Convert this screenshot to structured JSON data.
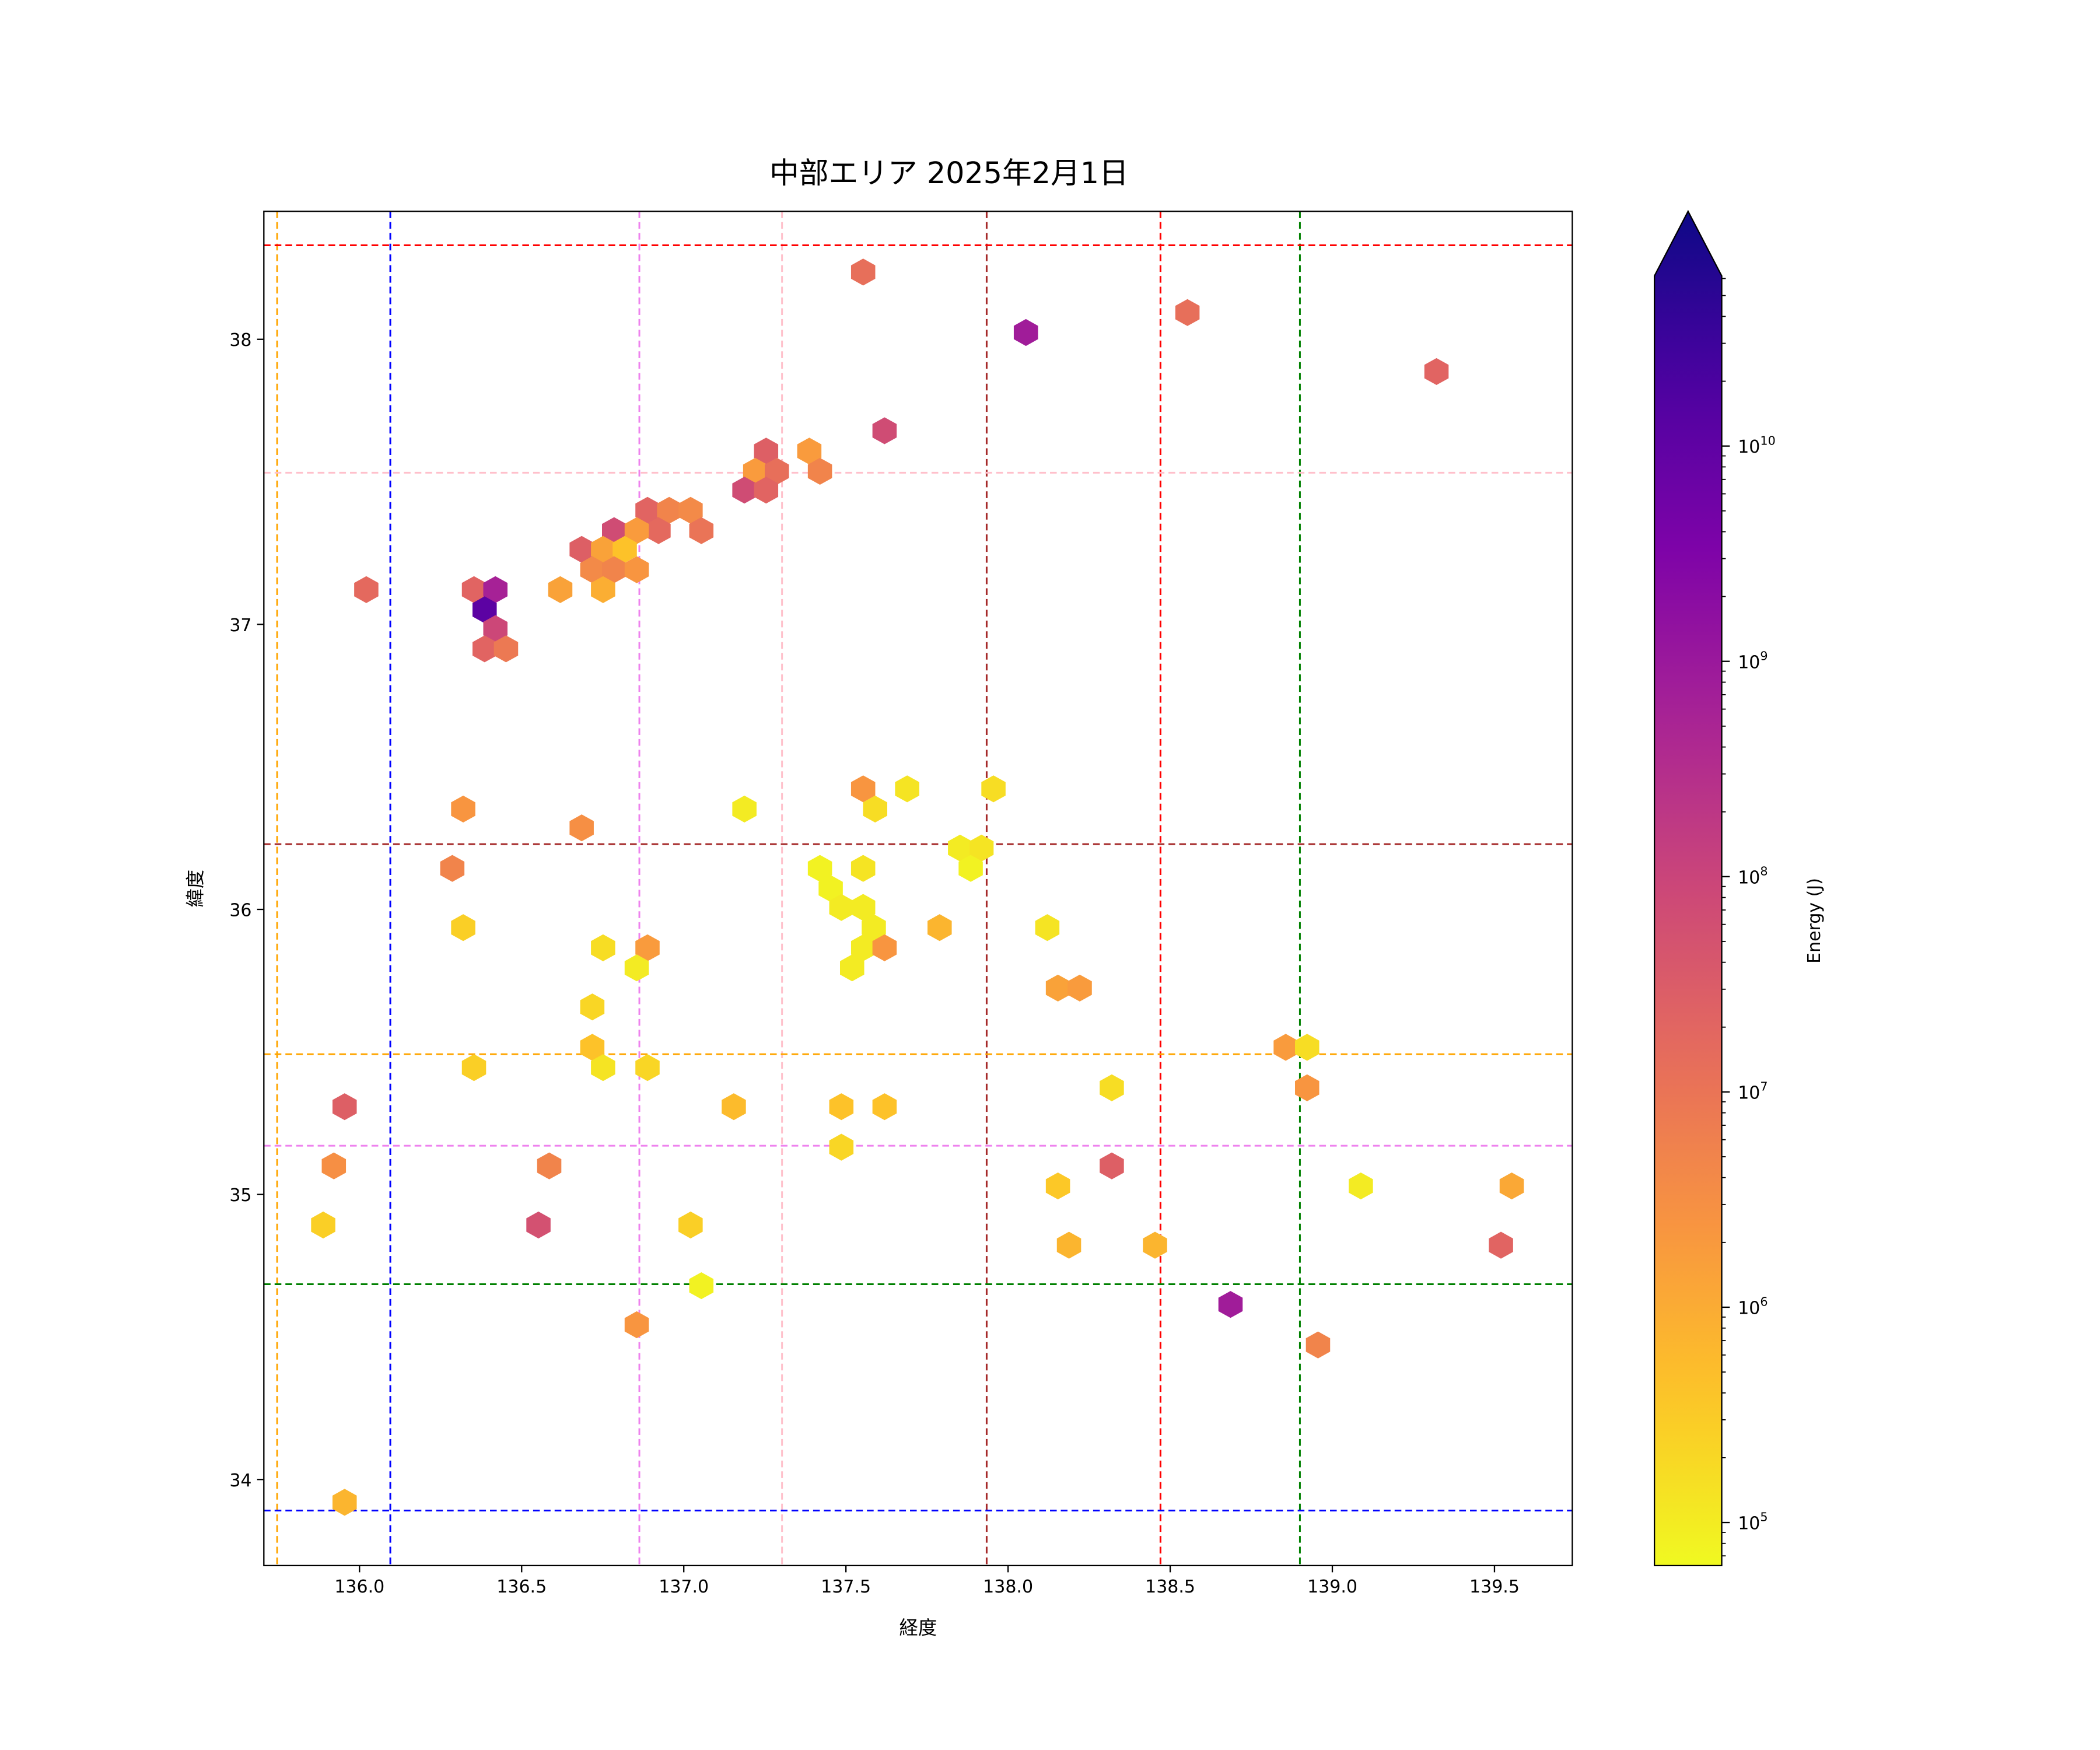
{
  "chart_data": {
    "type": "hexbin",
    "title": "中部エリア 2025年2月1日",
    "xlabel": "経度",
    "ylabel": "緯度",
    "xlim": [
      135.705,
      139.74
    ],
    "ylim": [
      33.698,
      38.449
    ],
    "xticks": [
      136.0,
      136.5,
      137.0,
      137.5,
      138.0,
      138.5,
      139.0,
      139.5
    ],
    "xtick_labels": [
      "136.0",
      "136.5",
      "137.0",
      "137.5",
      "138.0",
      "138.5",
      "139.0",
      "139.5"
    ],
    "yticks": [
      34,
      35,
      36,
      37,
      38
    ],
    "ytick_labels": [
      "34",
      "35",
      "36",
      "37",
      "38"
    ],
    "colorbar": {
      "label": "Energy (J)",
      "scale": "log",
      "range_log10": [
        4.8,
        10.79
      ],
      "extend": "max",
      "colormap": "plasma",
      "ticks_log10": [
        5,
        6,
        7,
        8,
        9,
        10
      ],
      "tick_base": "10",
      "tick_exponents": [
        "5",
        "6",
        "7",
        "8",
        "9",
        "10"
      ]
    },
    "reference_lines": {
      "vertical": [
        {
          "x": 135.746,
          "color": "#ffa500"
        },
        {
          "x": 136.095,
          "color": "#0000ff"
        },
        {
          "x": 136.863,
          "color": "#ee82ee"
        },
        {
          "x": 137.303,
          "color": "#ffc0cb"
        },
        {
          "x": 137.934,
          "color": "#a52a2a"
        },
        {
          "x": 138.47,
          "color": "#ff0000"
        },
        {
          "x": 138.9,
          "color": "#008000"
        }
      ],
      "horizontal": [
        {
          "y": 38.33,
          "color": "#ff0000"
        },
        {
          "y": 37.532,
          "color": "#ffc0cb"
        },
        {
          "y": 36.229,
          "color": "#a52a2a"
        },
        {
          "y": 35.492,
          "color": "#ffa500"
        },
        {
          "y": 35.171,
          "color": "#ee82ee"
        },
        {
          "y": 34.685,
          "color": "#008000"
        },
        {
          "y": 33.891,
          "color": "#0000ff"
        }
      ]
    },
    "bins": [
      [
        137.553,
        38.236,
        7.0
      ],
      [
        138.055,
        38.024,
        8.7
      ],
      [
        138.553,
        38.094,
        7.0
      ],
      [
        139.321,
        37.887,
        7.2
      ],
      [
        137.619,
        37.679,
        7.7
      ],
      [
        137.254,
        37.608,
        7.3
      ],
      [
        137.387,
        37.608,
        6.2
      ],
      [
        137.22,
        37.537,
        6.2
      ],
      [
        137.287,
        37.537,
        7.0
      ],
      [
        137.42,
        37.537,
        6.6
      ],
      [
        137.187,
        37.471,
        7.7
      ],
      [
        137.254,
        37.471,
        7.2
      ],
      [
        136.888,
        37.4,
        7.2
      ],
      [
        136.955,
        37.4,
        6.6
      ],
      [
        137.021,
        37.4,
        6.5
      ],
      [
        136.922,
        37.329,
        7.1
      ],
      [
        137.054,
        37.329,
        6.9
      ],
      [
        136.785,
        37.329,
        7.7
      ],
      [
        136.855,
        37.329,
        6.2
      ],
      [
        136.685,
        37.263,
        7.3
      ],
      [
        136.751,
        37.263,
        6.1
      ],
      [
        136.818,
        37.263,
        5.6
      ],
      [
        136.718,
        37.192,
        6.5
      ],
      [
        136.785,
        37.192,
        6.6
      ],
      [
        136.855,
        37.192,
        6.3
      ],
      [
        136.751,
        37.122,
        5.9
      ],
      [
        136.619,
        37.122,
        6.1
      ],
      [
        136.353,
        37.122,
        7.2
      ],
      [
        136.419,
        37.122,
        8.6
      ],
      [
        136.021,
        37.122,
        7.1
      ],
      [
        136.386,
        37.051,
        9.8
      ],
      [
        136.419,
        36.985,
        7.8
      ],
      [
        136.386,
        36.914,
        7.2
      ],
      [
        136.452,
        36.914,
        6.8
      ],
      [
        137.187,
        36.352,
        5.0
      ],
      [
        137.553,
        36.423,
        6.3
      ],
      [
        137.59,
        36.352,
        5.2
      ],
      [
        137.689,
        36.423,
        5.1
      ],
      [
        137.955,
        36.423,
        5.2
      ],
      [
        136.32,
        36.352,
        6.3
      ],
      [
        136.685,
        36.286,
        6.4
      ],
      [
        136.286,
        36.144,
        6.6
      ],
      [
        137.42,
        36.144,
        4.9
      ],
      [
        137.553,
        36.144,
        5.1
      ],
      [
        137.453,
        36.073,
        4.9
      ],
      [
        137.486,
        36.007,
        5.0
      ],
      [
        137.553,
        36.007,
        5.0
      ],
      [
        137.852,
        36.215,
        5.0
      ],
      [
        137.918,
        36.215,
        5.1
      ],
      [
        137.885,
        36.144,
        4.9
      ],
      [
        137.586,
        35.936,
        5.0
      ],
      [
        137.553,
        35.865,
        5.0
      ],
      [
        137.619,
        35.865,
        6.3
      ],
      [
        137.519,
        35.795,
        5.0
      ],
      [
        137.789,
        35.936,
        5.8
      ],
      [
        138.121,
        35.936,
        5.1
      ],
      [
        136.32,
        35.936,
        5.4
      ],
      [
        136.751,
        35.865,
        5.2
      ],
      [
        136.888,
        35.865,
        6.2
      ],
      [
        136.855,
        35.795,
        5.0
      ],
      [
        138.154,
        35.724,
        6.1
      ],
      [
        138.221,
        35.724,
        6.2
      ],
      [
        136.718,
        35.658,
        5.3
      ],
      [
        136.718,
        35.516,
        5.6
      ],
      [
        136.751,
        35.445,
        5.1
      ],
      [
        136.353,
        35.445,
        5.4
      ],
      [
        136.888,
        35.445,
        5.3
      ],
      [
        138.856,
        35.516,
        6.2
      ],
      [
        138.922,
        35.516,
        5.2
      ],
      [
        138.922,
        35.374,
        6.3
      ],
      [
        138.32,
        35.374,
        5.2
      ],
      [
        135.954,
        35.308,
        7.3
      ],
      [
        137.154,
        35.308,
        5.7
      ],
      [
        137.486,
        35.308,
        5.6
      ],
      [
        137.619,
        35.308,
        5.6
      ],
      [
        137.486,
        35.166,
        5.3
      ],
      [
        135.921,
        35.1,
        6.4
      ],
      [
        136.585,
        35.1,
        6.6
      ],
      [
        138.32,
        35.1,
        7.3
      ],
      [
        138.154,
        35.03,
        5.5
      ],
      [
        139.088,
        35.03,
        5.0
      ],
      [
        139.553,
        35.03,
        6.0
      ],
      [
        135.888,
        34.893,
        5.4
      ],
      [
        136.552,
        34.893,
        7.6
      ],
      [
        137.021,
        34.893,
        5.4
      ],
      [
        138.188,
        34.822,
        5.8
      ],
      [
        138.453,
        34.822,
        5.8
      ],
      [
        139.52,
        34.822,
        7.2
      ],
      [
        137.054,
        34.68,
        4.9
      ],
      [
        138.686,
        34.614,
        8.7
      ],
      [
        136.855,
        34.543,
        6.3
      ],
      [
        138.956,
        34.472,
        6.6
      ],
      [
        135.954,
        33.92,
        5.8
      ]
    ],
    "bin_format": [
      "longitude",
      "latitude",
      "log10_energy_J"
    ]
  }
}
